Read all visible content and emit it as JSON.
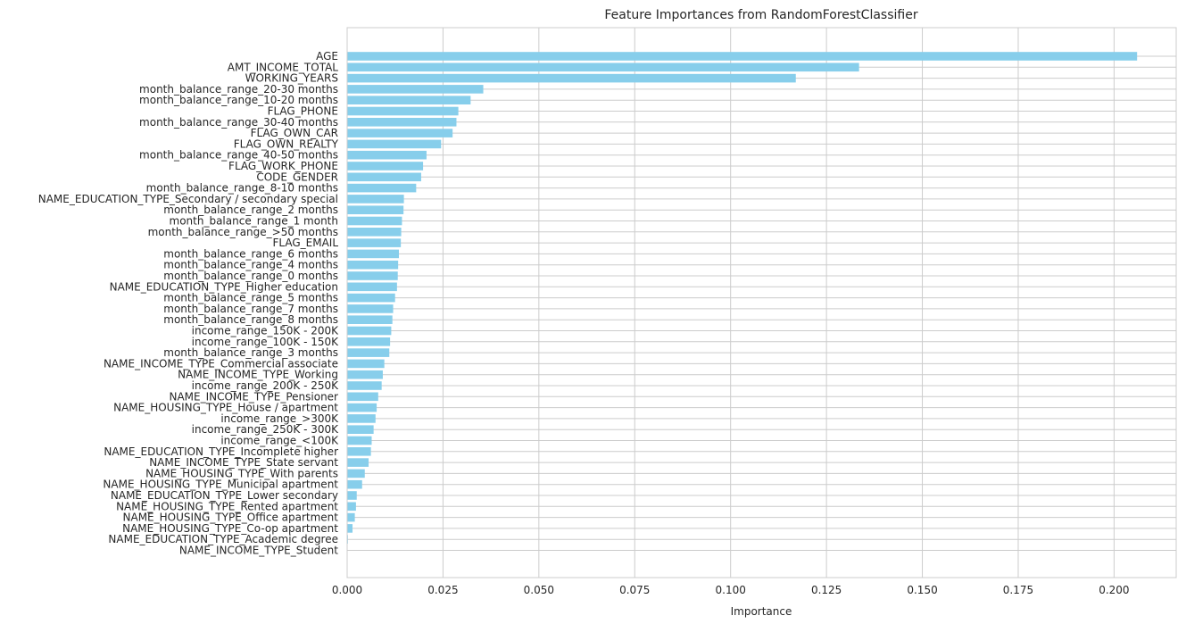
{
  "chart_data": {
    "type": "bar",
    "orientation": "horizontal",
    "title": "Feature Importances from RandomForestClassifier",
    "xlabel": "Importance",
    "ylabel": "",
    "xlim": [
      0,
      0.2162
    ],
    "xticks": [
      "0.000",
      "0.025",
      "0.050",
      "0.075",
      "0.100",
      "0.125",
      "0.150",
      "0.175",
      "0.200"
    ],
    "grid": true,
    "bar_color": "#87CEEB",
    "categories": [
      "AGE",
      "AMT_INCOME_TOTAL",
      "WORKING_YEARS",
      "month_balance_range_20-30 months",
      "month_balance_range_10-20 months",
      "FLAG_PHONE",
      "month_balance_range_30-40 months",
      "FLAG_OWN_CAR",
      "FLAG_OWN_REALTY",
      "month_balance_range_40-50 months",
      "FLAG_WORK_PHONE",
      "CODE_GENDER",
      "month_balance_range_8-10 months",
      "NAME_EDUCATION_TYPE_Secondary / secondary special",
      "month_balance_range_2 months",
      "month_balance_range_1 month",
      "month_balance_range_>50 months",
      "FLAG_EMAIL",
      "month_balance_range_6 months",
      "month_balance_range_4 months",
      "month_balance_range_0 months",
      "NAME_EDUCATION_TYPE_Higher education",
      "month_balance_range_5 months",
      "month_balance_range_7 months",
      "month_balance_range_8 months",
      "income_range_150K - 200K",
      "income_range_100K - 150K",
      "month_balance_range_3 months",
      "NAME_INCOME_TYPE_Commercial associate",
      "NAME_INCOME_TYPE_Working",
      "income_range_200K - 250K",
      "NAME_INCOME_TYPE_Pensioner",
      "NAME_HOUSING_TYPE_House / apartment",
      "income_range_>300K",
      "income_range_250K - 300K",
      "income_range_<100K",
      "NAME_EDUCATION_TYPE_Incomplete higher",
      "NAME_INCOME_TYPE_State servant",
      "NAME_HOUSING_TYPE_With parents",
      "NAME_HOUSING_TYPE_Municipal apartment",
      "NAME_EDUCATION_TYPE_Lower secondary",
      "NAME_HOUSING_TYPE_Rented apartment",
      "NAME_HOUSING_TYPE_Office apartment",
      "NAME_HOUSING_TYPE_Co-op apartment",
      "NAME_EDUCATION_TYPE_Academic degree",
      "NAME_INCOME_TYPE_Student"
    ],
    "values": [
      0.206,
      0.1335,
      0.117,
      0.0355,
      0.0322,
      0.029,
      0.0285,
      0.0275,
      0.0245,
      0.0207,
      0.0198,
      0.0193,
      0.018,
      0.0148,
      0.0147,
      0.0143,
      0.0141,
      0.014,
      0.0135,
      0.0133,
      0.0132,
      0.013,
      0.0125,
      0.012,
      0.0118,
      0.0115,
      0.0112,
      0.011,
      0.0097,
      0.0093,
      0.009,
      0.0081,
      0.0077,
      0.0074,
      0.0069,
      0.0064,
      0.0062,
      0.0056,
      0.0046,
      0.0039,
      0.0025,
      0.0023,
      0.002,
      0.0014,
      0.0002,
      0.0
    ]
  }
}
